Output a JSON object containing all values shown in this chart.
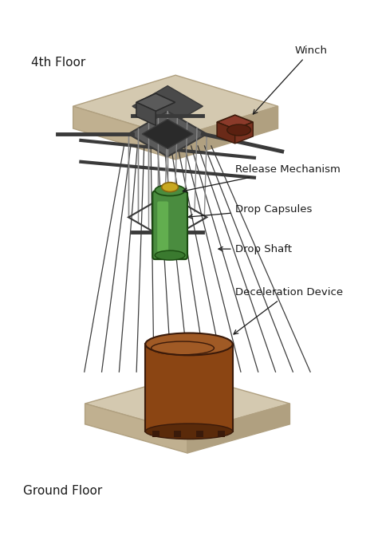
{
  "bg_color": "#ffffff",
  "platform_color": "#d4c9b0",
  "platform_edge_color": "#b0a080",
  "platform_front_color": "#c0b090",
  "frame_color": "#3a3a3a",
  "frame_fill": "#5a5a5a",
  "cable_color": "#2a2a2a",
  "capsule_color": "#4a8c3f",
  "capsule_highlight": "#6ab84a",
  "capsule_top_color": "#c8a820",
  "decel_body_color": "#8B4513",
  "decel_top_color": "#a05a25",
  "decel_inner_color": "#6a3010",
  "winch_color": "#8b3a2a",
  "winch_top_color": "#aa5040",
  "mech_color": "#555555",
  "labels": {
    "fourth_floor": "4th Floor",
    "ground_floor": "Ground Floor",
    "winch": "Winch",
    "release": "Release Mechanism",
    "capsules": "Drop Capsules",
    "shaft": "Drop Shaft",
    "decel": "Deceleration Device"
  },
  "label_fontsize": 9.5,
  "floor_fontsize": 11
}
